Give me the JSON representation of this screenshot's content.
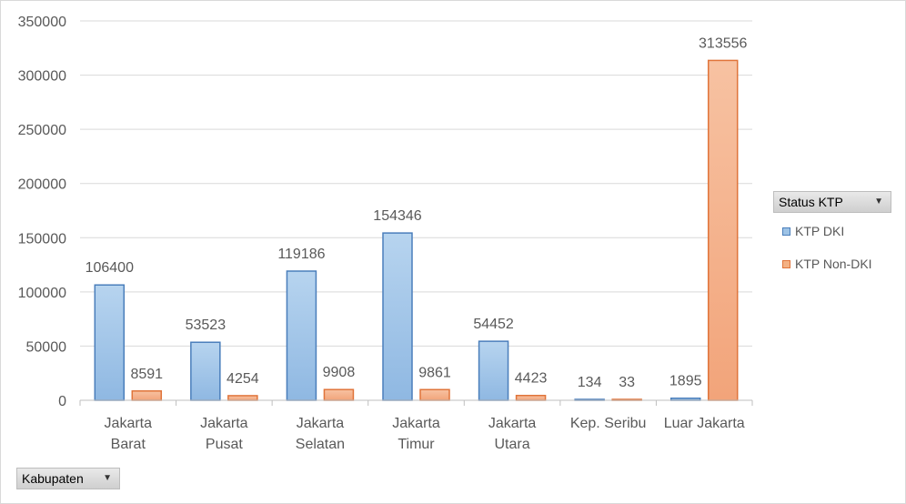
{
  "legend": {
    "field_label": "Status KTP",
    "items": [
      {
        "label": "KTP DKI",
        "color": "#9dc3e6",
        "border": "#4a7ebb"
      },
      {
        "label": "KTP Non-DKI",
        "color": "#f4b183",
        "border": "#e0743a"
      }
    ]
  },
  "axis_field": {
    "label": "Kabupaten"
  },
  "chart_data": {
    "type": "bar",
    "categories": [
      "Jakarta Barat",
      "Jakarta Pusat",
      "Jakarta Selatan",
      "Jakarta Timur",
      "Jakarta Utara",
      "Kep. Seribu",
      "Luar Jakarta"
    ],
    "series": [
      {
        "name": "KTP DKI",
        "values": [
          106400,
          53523,
          119186,
          154346,
          54452,
          134,
          1895
        ]
      },
      {
        "name": "KTP Non-DKI",
        "values": [
          8591,
          4254,
          9908,
          9861,
          4423,
          33,
          313556
        ]
      }
    ],
    "ylim": [
      0,
      350000
    ],
    "yticks": [
      0,
      50000,
      100000,
      150000,
      200000,
      250000,
      300000,
      350000
    ],
    "grid": true,
    "legend_position": "right"
  }
}
